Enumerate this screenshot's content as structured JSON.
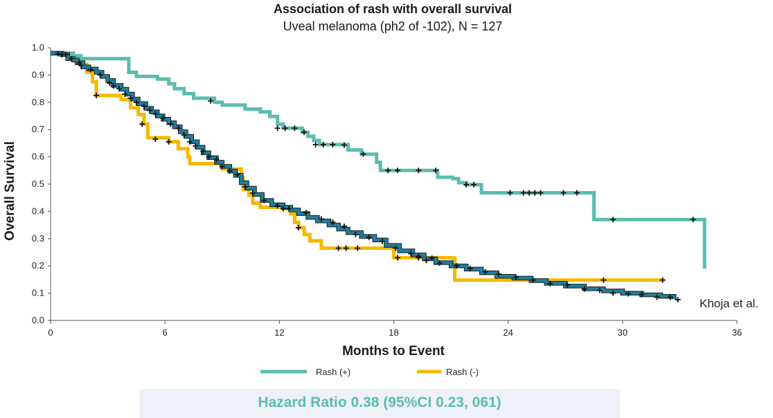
{
  "chart_data": {
    "type": "line",
    "title": "Association of rash with overall survival",
    "subtitle": "Uveal melanoma (ph2 of -102), N = 127",
    "xlabel": "Months to Event",
    "ylabel": "Overall Survival",
    "xlim": [
      0,
      36
    ],
    "ylim": [
      0,
      1.0
    ],
    "xticks": [
      "0",
      "6",
      "12",
      "18",
      "24",
      "30",
      "36"
    ],
    "yticks": [
      "0.0",
      "0.1",
      "0.2",
      "0.3",
      "0.4",
      "0.5",
      "0.6",
      "0.7",
      "0.8",
      "0.9",
      "1.0"
    ],
    "legend_position": "bottom-center",
    "annotation": "Khoja et al.",
    "hazard_ratio": "Hazard Ratio 0.38 (95%CI 0.23, 061)",
    "hazard_ratio_color": "#5bbcb0",
    "series": [
      {
        "name": "Rash (+)",
        "color": "#5bbcb0",
        "steps": [
          [
            0,
            0.98
          ],
          [
            0.5,
            0.98
          ],
          [
            1.2,
            0.97
          ],
          [
            1.6,
            0.96
          ],
          [
            4.1,
            0.91
          ],
          [
            4.5,
            0.895
          ],
          [
            5.6,
            0.885
          ],
          [
            6.2,
            0.868
          ],
          [
            6.5,
            0.85
          ],
          [
            7,
            0.832
          ],
          [
            7.5,
            0.815
          ],
          [
            8.6,
            0.8
          ],
          [
            9,
            0.79
          ],
          [
            10.2,
            0.775
          ],
          [
            11,
            0.765
          ],
          [
            11.5,
            0.748
          ],
          [
            11.9,
            0.72
          ],
          [
            12.2,
            0.705
          ],
          [
            13.2,
            0.69
          ],
          [
            13.5,
            0.675
          ],
          [
            13.8,
            0.66
          ],
          [
            14.1,
            0.645
          ],
          [
            15.6,
            0.625
          ],
          [
            16.3,
            0.61
          ],
          [
            17.1,
            0.58
          ],
          [
            17.3,
            0.55
          ],
          [
            20.3,
            0.525
          ],
          [
            21.1,
            0.52
          ],
          [
            21.4,
            0.505
          ],
          [
            21.8,
            0.498
          ],
          [
            22.6,
            0.468
          ],
          [
            28.5,
            0.37
          ],
          [
            34.3,
            0.19
          ]
        ],
        "censored": [
          [
            8.4,
            0.805
          ],
          [
            11.9,
            0.705
          ],
          [
            12.3,
            0.705
          ],
          [
            12.8,
            0.705
          ],
          [
            13.3,
            0.69
          ],
          [
            13.9,
            0.645
          ],
          [
            14.3,
            0.645
          ],
          [
            14.8,
            0.645
          ],
          [
            15.4,
            0.643
          ],
          [
            16.4,
            0.61
          ],
          [
            17.7,
            0.55
          ],
          [
            18.2,
            0.55
          ],
          [
            19.3,
            0.55
          ],
          [
            20.2,
            0.55
          ],
          [
            21.8,
            0.498
          ],
          [
            22.2,
            0.498
          ],
          [
            24.1,
            0.468
          ],
          [
            24.8,
            0.468
          ],
          [
            25.1,
            0.468
          ],
          [
            25.4,
            0.468
          ],
          [
            25.7,
            0.468
          ],
          [
            26.9,
            0.468
          ],
          [
            27.6,
            0.468
          ],
          [
            29.5,
            0.37
          ],
          [
            33.7,
            0.37
          ]
        ]
      },
      {
        "name": "Rash (-)",
        "color": "#f5b800",
        "steps": [
          [
            0,
            0.98
          ],
          [
            0.9,
            0.97
          ],
          [
            1.3,
            0.95
          ],
          [
            1.6,
            0.94
          ],
          [
            1.9,
            0.91
          ],
          [
            2.2,
            0.875
          ],
          [
            2.4,
            0.825
          ],
          [
            3.7,
            0.81
          ],
          [
            4.2,
            0.78
          ],
          [
            4.6,
            0.755
          ],
          [
            4.9,
            0.72
          ],
          [
            5.1,
            0.67
          ],
          [
            6.2,
            0.655
          ],
          [
            6.7,
            0.63
          ],
          [
            7.2,
            0.6
          ],
          [
            7.3,
            0.575
          ],
          [
            9,
            0.555
          ],
          [
            10,
            0.525
          ],
          [
            10.1,
            0.48
          ],
          [
            10.4,
            0.46
          ],
          [
            10.6,
            0.43
          ],
          [
            11,
            0.415
          ],
          [
            12.2,
            0.41
          ],
          [
            12.6,
            0.39
          ],
          [
            12.8,
            0.36
          ],
          [
            13,
            0.34
          ],
          [
            13.3,
            0.315
          ],
          [
            13.6,
            0.292
          ],
          [
            14.2,
            0.265
          ],
          [
            18,
            0.23
          ],
          [
            21.1,
            0.228
          ],
          [
            21.2,
            0.148
          ],
          [
            32.2,
            0.148
          ]
        ],
        "censored": [
          [
            0.6,
            0.975
          ],
          [
            1.6,
            0.935
          ],
          [
            2.4,
            0.825
          ],
          [
            4.8,
            0.72
          ],
          [
            5.5,
            0.665
          ],
          [
            6.2,
            0.655
          ],
          [
            12.2,
            0.41
          ],
          [
            13,
            0.34
          ],
          [
            15.1,
            0.265
          ],
          [
            15.5,
            0.265
          ],
          [
            16.1,
            0.265
          ],
          [
            18.2,
            0.23
          ],
          [
            19.3,
            0.23
          ],
          [
            20,
            0.228
          ],
          [
            29,
            0.148
          ],
          [
            32.1,
            0.148
          ]
        ]
      },
      {
        "name": "",
        "color": "#1f7f9e",
        "steps": [
          [
            0,
            0.98
          ],
          [
            0.6,
            0.975
          ],
          [
            0.9,
            0.96
          ],
          [
            1.2,
            0.955
          ],
          [
            1.4,
            0.945
          ],
          [
            1.7,
            0.93
          ],
          [
            2,
            0.922
          ],
          [
            2.4,
            0.91
          ],
          [
            2.7,
            0.895
          ],
          [
            3,
            0.88
          ],
          [
            3.3,
            0.862
          ],
          [
            3.7,
            0.848
          ],
          [
            4,
            0.83
          ],
          [
            4.3,
            0.812
          ],
          [
            4.6,
            0.795
          ],
          [
            5,
            0.778
          ],
          [
            5.3,
            0.765
          ],
          [
            5.6,
            0.75
          ],
          [
            5.9,
            0.738
          ],
          [
            6.2,
            0.725
          ],
          [
            6.5,
            0.71
          ],
          [
            6.8,
            0.692
          ],
          [
            7.1,
            0.675
          ],
          [
            7.4,
            0.655
          ],
          [
            7.7,
            0.635
          ],
          [
            8,
            0.615
          ],
          [
            8.3,
            0.597
          ],
          [
            8.7,
            0.58
          ],
          [
            9,
            0.565
          ],
          [
            9.4,
            0.548
          ],
          [
            9.7,
            0.532
          ],
          [
            10,
            0.505
          ],
          [
            10.3,
            0.485
          ],
          [
            10.7,
            0.462
          ],
          [
            11.1,
            0.44
          ],
          [
            11.6,
            0.424
          ],
          [
            12.2,
            0.415
          ],
          [
            12.6,
            0.405
          ],
          [
            13,
            0.392
          ],
          [
            13.5,
            0.378
          ],
          [
            14,
            0.365
          ],
          [
            14.6,
            0.35
          ],
          [
            15.1,
            0.335
          ],
          [
            15.6,
            0.322
          ],
          [
            16.3,
            0.308
          ],
          [
            17,
            0.295
          ],
          [
            17.6,
            0.275
          ],
          [
            18.3,
            0.255
          ],
          [
            19,
            0.24
          ],
          [
            19.6,
            0.226
          ],
          [
            20.2,
            0.212
          ],
          [
            21,
            0.2
          ],
          [
            21.8,
            0.188
          ],
          [
            22.6,
            0.175
          ],
          [
            23.4,
            0.162
          ],
          [
            24.3,
            0.155
          ],
          [
            25.2,
            0.146
          ],
          [
            26,
            0.136
          ],
          [
            27,
            0.126
          ],
          [
            28,
            0.116
          ],
          [
            29,
            0.108
          ],
          [
            30,
            0.1
          ],
          [
            31,
            0.094
          ],
          [
            32,
            0.088
          ],
          [
            32.7,
            0.078
          ]
        ],
        "censored": [
          [
            0.4,
            0.978
          ],
          [
            0.8,
            0.975
          ],
          [
            1.1,
            0.96
          ],
          [
            1.5,
            0.945
          ],
          [
            2.1,
            0.92
          ],
          [
            2.6,
            0.9
          ],
          [
            3.1,
            0.87
          ],
          [
            3.3,
            0.86
          ],
          [
            3.6,
            0.85
          ],
          [
            3.9,
            0.83
          ],
          [
            4.2,
            0.815
          ],
          [
            4.5,
            0.8
          ],
          [
            4.9,
            0.785
          ],
          [
            5.2,
            0.77
          ],
          [
            5.5,
            0.757
          ],
          [
            5.9,
            0.742
          ],
          [
            6.3,
            0.72
          ],
          [
            6.7,
            0.705
          ],
          [
            7,
            0.68
          ],
          [
            7.3,
            0.655
          ],
          [
            7.6,
            0.64
          ],
          [
            8,
            0.62
          ],
          [
            8.3,
            0.6
          ],
          [
            8.7,
            0.59
          ],
          [
            9,
            0.565
          ],
          [
            9.4,
            0.548
          ],
          [
            9.8,
            0.535
          ],
          [
            10.2,
            0.49
          ],
          [
            10.6,
            0.467
          ],
          [
            11.2,
            0.44
          ],
          [
            11.9,
            0.42
          ],
          [
            12.5,
            0.41
          ],
          [
            13.4,
            0.395
          ],
          [
            14.2,
            0.372
          ],
          [
            14.8,
            0.36
          ],
          [
            15.4,
            0.345
          ],
          [
            16,
            0.315
          ],
          [
            16.7,
            0.305
          ],
          [
            17.4,
            0.29
          ],
          [
            18.1,
            0.265
          ],
          [
            18.9,
            0.245
          ],
          [
            19.3,
            0.235
          ],
          [
            19.7,
            0.22
          ],
          [
            20.4,
            0.21
          ],
          [
            21.3,
            0.2
          ],
          [
            22,
            0.19
          ],
          [
            22.8,
            0.178
          ],
          [
            23.5,
            0.17
          ],
          [
            24.4,
            0.158
          ],
          [
            25.3,
            0.148
          ],
          [
            26.2,
            0.135
          ],
          [
            27.1,
            0.13
          ],
          [
            28,
            0.115
          ],
          [
            28.8,
            0.11
          ],
          [
            29.5,
            0.1
          ],
          [
            30.3,
            0.098
          ],
          [
            31,
            0.095
          ],
          [
            31.8,
            0.085
          ],
          [
            32.5,
            0.085
          ],
          [
            32.9,
            0.076
          ]
        ]
      }
    ]
  }
}
